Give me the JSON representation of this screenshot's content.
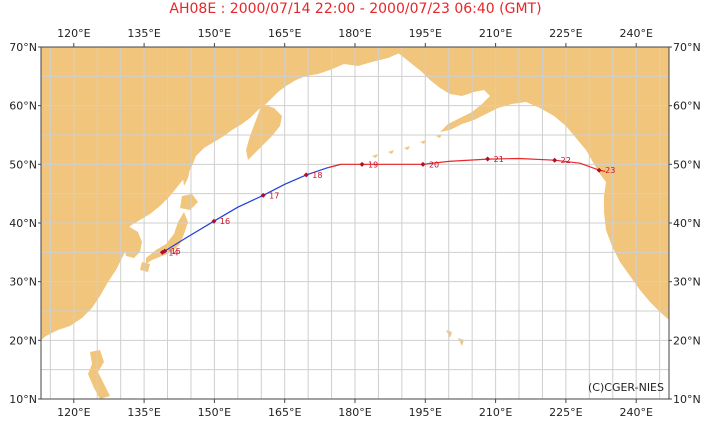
{
  "title": "AH08E : 2000/07/14 22:00 - 2000/07/23 06:40 (GMT)",
  "credit": "(C)CGER-NIES",
  "colors": {
    "title": "#e8262a",
    "ocean": "#ffffff",
    "land": "#f2c57c",
    "grid": "#cfcfcf",
    "track_west": "#1f3fd6",
    "track_east": "#e8262a",
    "marker": "#b0102a"
  },
  "map_extent": {
    "lon": [
      113,
      247
    ],
    "lat": [
      10,
      70
    ]
  },
  "axes": {
    "lon_ticks": [
      "120°E",
      "135°E",
      "150°E",
      "165°E",
      "180°E",
      "195°E",
      "210°E",
      "225°E",
      "240°E"
    ],
    "lat_ticks": [
      "10°N",
      "20°N",
      "30°N",
      "40°N",
      "50°N",
      "60°N",
      "70°N"
    ]
  },
  "track": {
    "points": [
      {
        "lon": 138.9,
        "lat": 35.0
      },
      {
        "lon": 140.0,
        "lat": 35.5
      },
      {
        "lon": 144.0,
        "lat": 37.5
      },
      {
        "lon": 149.9,
        "lat": 40.3
      },
      {
        "lon": 155.0,
        "lat": 42.7
      },
      {
        "lon": 160.4,
        "lat": 44.7
      },
      {
        "lon": 165.0,
        "lat": 46.6
      },
      {
        "lon": 169.6,
        "lat": 48.2
      },
      {
        "lon": 174.0,
        "lat": 49.4
      },
      {
        "lon": 177.0,
        "lat": 50.0
      },
      {
        "lon": 182.0,
        "lat": 50.0
      },
      {
        "lon": 187.0,
        "lat": 50.0
      },
      {
        "lon": 194.5,
        "lat": 50.0
      },
      {
        "lon": 200.0,
        "lat": 50.5
      },
      {
        "lon": 208.3,
        "lat": 50.9
      },
      {
        "lon": 215.0,
        "lat": 51.0
      },
      {
        "lon": 222.6,
        "lat": 50.7
      },
      {
        "lon": 228.0,
        "lat": 50.2
      },
      {
        "lon": 232.1,
        "lat": 49.0
      },
      {
        "lon": 233.4,
        "lat": 48.8
      }
    ],
    "color_split_lon": 175.5,
    "markers": [
      {
        "lon": 138.9,
        "lat": 35.0,
        "label": "14"
      },
      {
        "lon": 139.4,
        "lat": 35.2,
        "label": "15"
      },
      {
        "lon": 149.9,
        "lat": 40.3,
        "label": "16"
      },
      {
        "lon": 160.4,
        "lat": 44.7,
        "label": "17"
      },
      {
        "lon": 169.6,
        "lat": 48.2,
        "label": "18"
      },
      {
        "lon": 181.5,
        "lat": 50.0,
        "label": "19"
      },
      {
        "lon": 194.5,
        "lat": 50.0,
        "label": "20"
      },
      {
        "lon": 208.3,
        "lat": 50.9,
        "label": "21"
      },
      {
        "lon": 222.6,
        "lat": 50.7,
        "label": "22"
      },
      {
        "lon": 232.1,
        "lat": 49.0,
        "label": "23"
      }
    ]
  }
}
